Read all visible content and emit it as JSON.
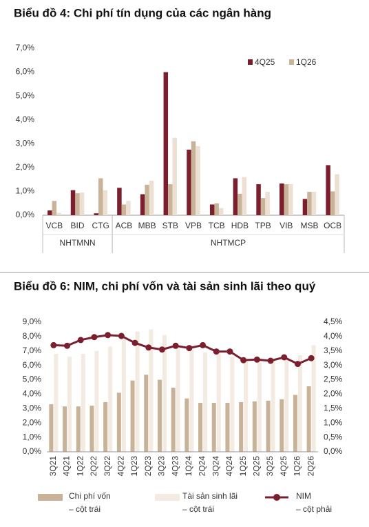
{
  "chart_data": [
    {
      "type": "bar",
      "title": "Biểu đồ 4:  Chi phí tín dụng của các ngân hàng",
      "categories": [
        "VCB",
        "BID",
        "CTG",
        "ACB",
        "MBB",
        "STB",
        "VPB",
        "TCB",
        "HDB",
        "TPB",
        "VIB",
        "MSB",
        "OCB"
      ],
      "groups": [
        {
          "name": "NHTMNN",
          "from": 0,
          "to": 2
        },
        {
          "name": "NHTMCP",
          "from": 3,
          "to": 12
        }
      ],
      "series": [
        {
          "name": "4Q25",
          "color": "#7b1f2e",
          "values": [
            0.2,
            1.05,
            0.08,
            1.15,
            0.88,
            6.0,
            2.75,
            0.45,
            1.55,
            1.3,
            1.33,
            0.68,
            2.1
          ]
        },
        {
          "name": "1Q26",
          "color": "#c9b49a",
          "values": [
            0.6,
            0.92,
            1.55,
            0.45,
            1.28,
            1.3,
            3.1,
            0.5,
            0.9,
            0.72,
            1.3,
            0.98,
            1.0
          ]
        },
        {
          "color": "#ebe0d2",
          "values": [
            0.1,
            0.95,
            1.05,
            0.6,
            1.45,
            3.25,
            2.9,
            0.3,
            1.6,
            0.98,
            1.3,
            0.98,
            1.72
          ]
        }
      ],
      "ylim": [
        0,
        7
      ],
      "yticks": [
        {
          "value": 0,
          "label": "0,0%"
        },
        {
          "value": 1,
          "label": "1,0%"
        },
        {
          "value": 2,
          "label": "2,0%"
        },
        {
          "value": 3,
          "label": "3,0%"
        },
        {
          "value": 4,
          "label": "4,0%"
        },
        {
          "value": 5,
          "label": "5,0%"
        },
        {
          "value": 6,
          "label": "6,0%"
        },
        {
          "value": 7,
          "label": "7,0%"
        }
      ],
      "legend": "top-right"
    },
    {
      "type": "combo",
      "title": "Biểu đồ 6:  NIM, chi phí vốn và tài sản sinh lãi theo quý",
      "categories": [
        "3Q21",
        "4Q21",
        "1Q22",
        "2Q22",
        "3Q22",
        "4Q22",
        "1Q23",
        "2Q23",
        "3Q23",
        "4Q23",
        "1Q24",
        "2Q24",
        "3Q24",
        "4Q24",
        "1Q25",
        "2Q25",
        "3Q25",
        "4Q25",
        "1Q26",
        "2Q26"
      ],
      "series": [
        {
          "name": "Chi phí vốn",
          "legend_note": "– cột trái",
          "kind": "bar",
          "color": "#c8b298",
          "values": [
            3.3,
            3.15,
            3.15,
            3.2,
            3.45,
            4.1,
            4.95,
            5.35,
            5.0,
            4.45,
            3.7,
            3.4,
            3.4,
            3.4,
            3.45,
            3.5,
            3.55,
            3.65,
            3.95,
            4.55
          ]
        },
        {
          "name": "Tài sản sinh lãi",
          "legend_note": "– cột trái",
          "kind": "bar",
          "color": "#f3ebe1",
          "values": [
            6.8,
            6.6,
            6.8,
            7.0,
            7.3,
            7.8,
            8.35,
            8.5,
            8.1,
            7.3,
            7.1,
            6.9,
            6.8,
            6.6,
            6.4,
            6.5,
            6.4,
            6.4,
            6.7,
            7.4
          ]
        },
        {
          "name": "NIM",
          "legend_note": "– cột phải",
          "kind": "line",
          "axis": "y2",
          "color": "#7b1f2e",
          "values": [
            3.7,
            3.68,
            3.88,
            3.98,
            4.05,
            4.02,
            3.78,
            3.62,
            3.55,
            3.68,
            3.6,
            3.7,
            3.48,
            3.48,
            3.18,
            3.2,
            3.16,
            3.28,
            3.05,
            3.25
          ]
        }
      ],
      "ylim": [
        0,
        9
      ],
      "yticks": [
        {
          "value": 0,
          "label": "0,0%"
        },
        {
          "value": 1,
          "label": "1,0%"
        },
        {
          "value": 2,
          "label": "2,0%"
        },
        {
          "value": 3,
          "label": "3,0%"
        },
        {
          "value": 4,
          "label": "4,0%"
        },
        {
          "value": 5,
          "label": "5,0%"
        },
        {
          "value": 6,
          "label": "6,0%"
        },
        {
          "value": 7,
          "label": "7,0%"
        },
        {
          "value": 8,
          "label": "8,0%"
        },
        {
          "value": 9,
          "label": "9,0%"
        }
      ],
      "y2lim": [
        0,
        4.5
      ],
      "y2ticks": [
        {
          "value": 0,
          "label": "0,0%"
        },
        {
          "value": 0.5,
          "label": "0,5%"
        },
        {
          "value": 1,
          "label": "1,0%"
        },
        {
          "value": 1.5,
          "label": "1,5%"
        },
        {
          "value": 2,
          "label": "2,0%"
        },
        {
          "value": 2.5,
          "label": "2,5%"
        },
        {
          "value": 3,
          "label": "3,0%"
        },
        {
          "value": 3.5,
          "label": "3,5%"
        },
        {
          "value": 4,
          "label": "4,0%"
        },
        {
          "value": 4.5,
          "label": "4,5%"
        }
      ],
      "legend": "bottom"
    }
  ]
}
